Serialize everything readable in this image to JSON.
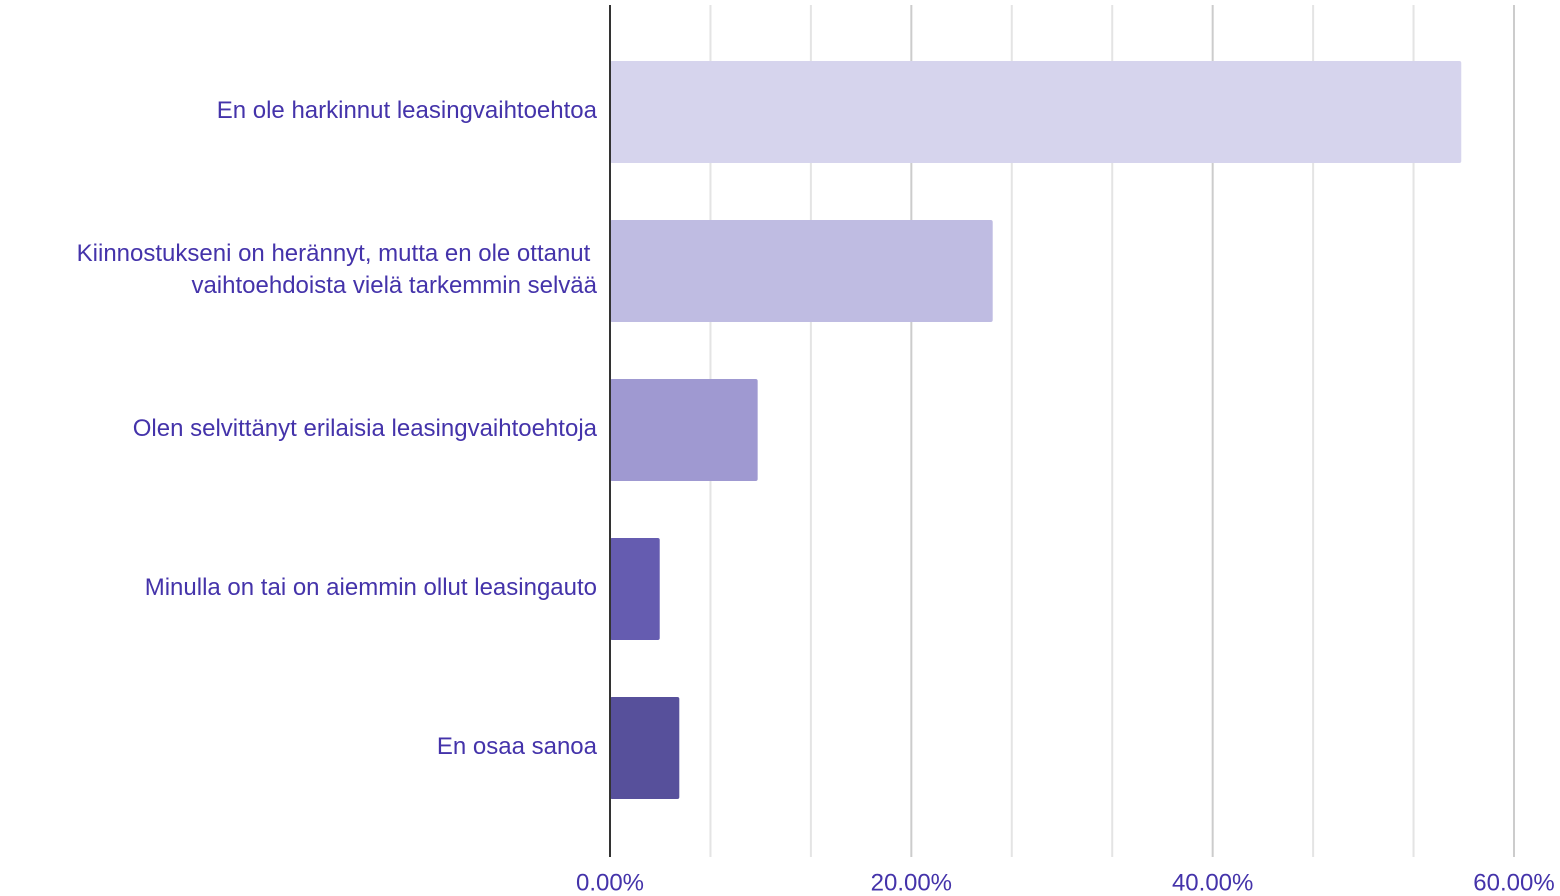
{
  "chart_data": {
    "type": "bar",
    "orientation": "horizontal",
    "categories": [
      "En ole harkinnut leasingvaihtoehtoa",
      "Kiinnostukseni on herännyt, mutta en ole ottanut\nvaihtoehdoista vielä tarkemmin selvää",
      "Olen selvittänyt erilaisia leasingvaihtoehtoja",
      "Minulla on tai on aiemmin ollut leasingauto",
      "En osaa sanoa"
    ],
    "values": [
      56.5,
      25.4,
      9.8,
      3.3,
      4.6
    ],
    "colors": [
      "#d6d4ed",
      "#bfbce2",
      "#9f99d1",
      "#655cb0",
      "#57509b"
    ],
    "xlim": [
      0,
      60
    ],
    "xticks": [
      {
        "value": 0,
        "label": "0.00%"
      },
      {
        "value": 20,
        "label": "20.00%"
      },
      {
        "value": 40,
        "label": "40.00%"
      },
      {
        "value": 60,
        "label": "60.00%"
      }
    ],
    "xminorticks": [
      6.667,
      13.333,
      26.667,
      33.333,
      46.667,
      53.333
    ],
    "grid": true
  }
}
